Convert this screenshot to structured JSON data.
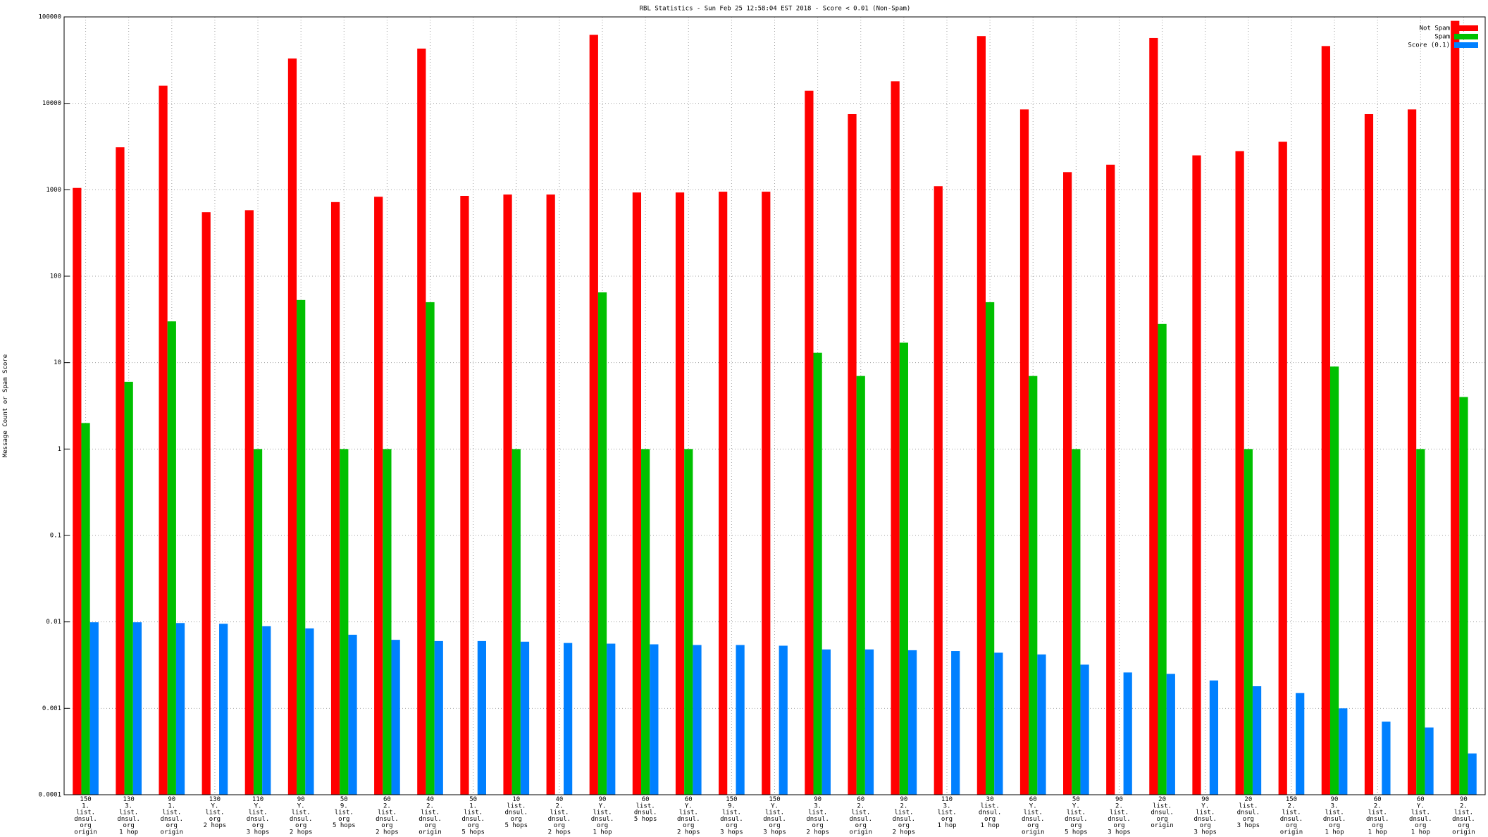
{
  "chart_data": {
    "type": "bar",
    "title": "RBL Statistics - Sun Feb 25 12:58:04 EST 2018 - Score < 0.01 (Non-Spam)",
    "y_label": "Message Count or Spam Score",
    "log_scale": true,
    "grid": true,
    "legend": "top-right",
    "ylim": [
      0.0001,
      100000
    ],
    "yticks": [
      0.0001,
      0.001,
      0.01,
      0.1,
      1,
      10,
      100,
      1000,
      10000,
      100000
    ],
    "categories": [
      [
        "150",
        "1.",
        "list.",
        "dnsul.",
        "org",
        "origin"
      ],
      [
        "130",
        "3.",
        "list.",
        "dnsul.",
        "org",
        "1 hop"
      ],
      [
        "90",
        "1.",
        "list.",
        "dnsul.",
        "org",
        "origin"
      ],
      [
        "130",
        "Y.",
        "list.",
        "org",
        "2 hops"
      ],
      [
        "110",
        "Y.",
        "list.",
        "dnsul.",
        "org",
        "3 hops"
      ],
      [
        "90",
        "Y.",
        "list.",
        "dnsul.",
        "org",
        "2 hops"
      ],
      [
        "50",
        "9.",
        "list.",
        "org",
        "5 hops"
      ],
      [
        "60",
        "2.",
        "list.",
        "dnsul.",
        "org",
        "2 hops"
      ],
      [
        "40",
        "2.",
        "list.",
        "dnsul.",
        "org",
        "origin"
      ],
      [
        "50",
        "1.",
        "list.",
        "dnsul.",
        "org",
        "5 hops"
      ],
      [
        "10",
        "list.",
        "dnsul.",
        "org",
        "5 hops"
      ],
      [
        "40",
        "2.",
        "list.",
        "dnsul.",
        "org",
        "2 hops"
      ],
      [
        "90",
        "Y.",
        "list.",
        "dnsul.",
        "org",
        "1 hop"
      ],
      [
        "60",
        "list.",
        "dnsul.",
        "5 hops"
      ],
      [
        "60",
        "Y.",
        "list.",
        "dnsul.",
        "org",
        "2 hops"
      ],
      [
        "150",
        "9.",
        "list.",
        "dnsul.",
        "org",
        "3 hops"
      ],
      [
        "150",
        "Y.",
        "list.",
        "dnsul.",
        "org",
        "3 hops"
      ],
      [
        "90",
        "3.",
        "list.",
        "dnsul.",
        "org",
        "2 hops"
      ],
      [
        "60",
        "2.",
        "list.",
        "dnsul.",
        "org",
        "origin"
      ],
      [
        "90",
        "2.",
        "list.",
        "dnsul.",
        "org",
        "2 hops"
      ],
      [
        "110",
        "3.",
        "list.",
        "org",
        "1 hop"
      ],
      [
        "30",
        "list.",
        "dnsul.",
        "org",
        "1 hop"
      ],
      [
        "60",
        "Y.",
        "list.",
        "dnsul.",
        "org",
        "origin"
      ],
      [
        "50",
        "Y.",
        "list.",
        "dnsul.",
        "org",
        "5 hops"
      ],
      [
        "90",
        "2.",
        "list.",
        "dnsul.",
        "org",
        "3 hops"
      ],
      [
        "20",
        "list.",
        "dnsul.",
        "org",
        "origin"
      ],
      [
        "90",
        "Y.",
        "list.",
        "dnsul.",
        "org",
        "3 hops"
      ],
      [
        "20",
        "list.",
        "dnsul.",
        "org",
        "3 hops"
      ],
      [
        "150",
        "2.",
        "list.",
        "dnsul.",
        "org",
        "origin"
      ],
      [
        "90",
        "3.",
        "list.",
        "dnsul.",
        "org",
        "1 hop"
      ],
      [
        "60",
        "2.",
        "list.",
        "dnsul.",
        "org",
        "1 hop"
      ],
      [
        "60",
        "Y.",
        "list.",
        "dnsul.",
        "org",
        "1 hop"
      ],
      [
        "90",
        "2.",
        "list.",
        "dnsul.",
        "org",
        "origin"
      ]
    ],
    "series": [
      {
        "name": "Not Spam",
        "color": "#ff0000",
        "values": [
          1050,
          3100,
          16000,
          550,
          580,
          33000,
          720,
          830,
          43000,
          850,
          880,
          880,
          62000,
          930,
          930,
          950,
          950,
          14000,
          7500,
          18000,
          1100,
          60000,
          8500,
          1600,
          1950,
          57000,
          2500,
          2800,
          3600,
          46000,
          7500,
          8500,
          90000
        ]
      },
      {
        "name": "Spam",
        "color": "#00c000",
        "values": [
          2,
          6,
          30,
          0,
          1,
          53,
          1,
          1,
          50,
          0,
          1,
          0,
          65,
          1,
          1,
          0,
          0,
          13,
          7,
          17,
          0,
          50,
          7,
          1,
          0,
          28,
          0,
          1,
          0,
          9,
          0,
          1,
          4
        ]
      },
      {
        "name": "Score (0.1)",
        "color": "#0080ff",
        "values": [
          0.0099,
          0.0099,
          0.0097,
          0.0095,
          0.0089,
          0.0084,
          0.0071,
          0.0062,
          0.006,
          0.006,
          0.0059,
          0.0057,
          0.0056,
          0.0055,
          0.0054,
          0.0054,
          0.0053,
          0.0048,
          0.0048,
          0.0047,
          0.0046,
          0.0044,
          0.0042,
          0.0032,
          0.0026,
          0.0025,
          0.0021,
          0.0018,
          0.0015,
          0.001,
          0.0007,
          0.0006,
          0.0003
        ]
      }
    ]
  }
}
